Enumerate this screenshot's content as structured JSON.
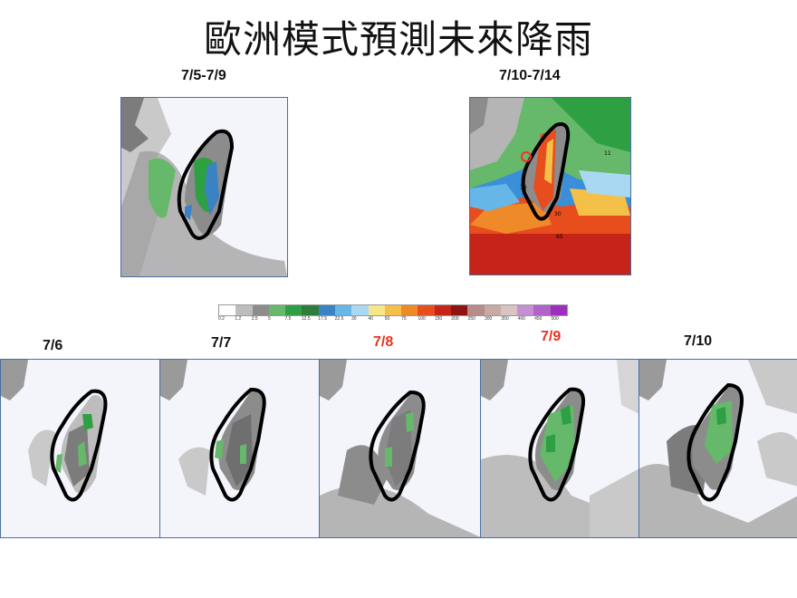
{
  "title": "歐洲模式預測未來降雨",
  "panels_top": [
    {
      "label": "7/5-7/9"
    },
    {
      "label": "7/10-7/14"
    }
  ],
  "panels_bottom": [
    {
      "label": "7/6"
    },
    {
      "label": "7/7"
    },
    {
      "label": "7/8"
    },
    {
      "label": "7/9"
    },
    {
      "label": "7/10"
    }
  ],
  "colorbar": {
    "ticks": [
      "0.2",
      "1.2",
      "2.5",
      "5",
      "7.5",
      "12.5",
      "17.5",
      "22.5",
      "30",
      "40",
      "50",
      "75",
      "100",
      "150",
      "200",
      "250",
      "300",
      "350",
      "400",
      "450",
      "500"
    ],
    "colors": [
      "#ffffff",
      "#bdbdbd",
      "#8c8c8c",
      "#66b86a",
      "#2ea043",
      "#2f7d3a",
      "#3b82c4",
      "#66b6e8",
      "#a9d8f2",
      "#f7e58a",
      "#f4c148",
      "#ef8a2a",
      "#e84d1e",
      "#c62418",
      "#8e1410",
      "#b88b8b",
      "#c9aaa3",
      "#d9c3c3",
      "#c78fd3",
      "#b163c9",
      "#9c2fc0"
    ]
  },
  "map_annotations": {
    "p2_vals": [
      "11",
      "30",
      "30",
      "65"
    ]
  }
}
